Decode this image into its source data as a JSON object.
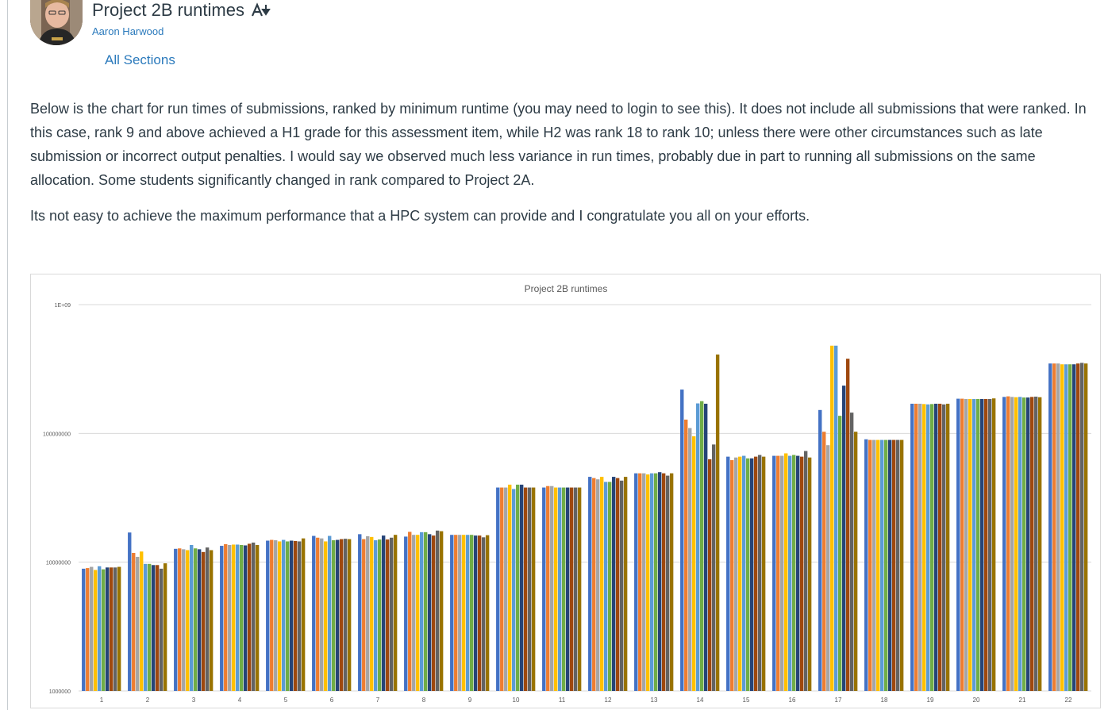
{
  "post": {
    "title": "Project 2B runtimes",
    "author": "Aaron Harwood",
    "sections_link": "All Sections",
    "paragraph1": "Below is the chart for run times of submissions, ranked by minimum runtime (you may need to login to see this). It does not include all submissions that were ranked. In this case, rank 9 and above achieved a H1 grade for this assessment item, while H2 was rank 18 to rank 10; unless there were other circumstances such as late submission or incorrect output penalties. I would say we observed much less variance in run times, probably due in part to running all submissions on the same allocation. Some students significantly changed in rank compared to Project 2A.",
    "paragraph2": "Its not easy to achieve the maximum performance that a HPC system can provide and I congratulate you all on your efforts."
  },
  "icons": {
    "avatar": "user-avatar",
    "immersive_reader": "immersive-reader-icon"
  },
  "chart_data": {
    "type": "bar",
    "title": "Project 2B runtimes",
    "yscale": "log",
    "ylim": [
      1000000,
      1000000000
    ],
    "ytick_labels": [
      "1E+09",
      "100000000",
      "10000000",
      "1000000"
    ],
    "ytick_values": [
      1000000000,
      100000000,
      10000000,
      1000000
    ],
    "grid": true,
    "categories": [
      "1",
      "2",
      "3",
      "4",
      "5",
      "6",
      "7",
      "8",
      "9",
      "10",
      "11",
      "12",
      "13",
      "14",
      "15",
      "16",
      "17",
      "18",
      "19",
      "20",
      "21",
      "22"
    ],
    "series_colors": [
      "#4472c4",
      "#ed7d31",
      "#a5a5a5",
      "#ffc000",
      "#5b9bd5",
      "#70ad47",
      "#264478",
      "#9e480e",
      "#636363",
      "#997300"
    ],
    "values": [
      [
        8900000,
        9000000,
        9200000,
        8700000,
        9300000,
        8800000,
        9100000,
        9100000,
        9100000,
        9200000
      ],
      [
        17000000,
        11800000,
        11000000,
        12100000,
        9700000,
        9700000,
        9500000,
        9500000,
        8900000,
        9800000
      ],
      [
        12700000,
        12800000,
        12600000,
        12400000,
        13600000,
        12800000,
        12600000,
        12000000,
        13000000,
        12400000
      ],
      [
        13400000,
        13800000,
        13600000,
        13700000,
        13700000,
        13600000,
        13500000,
        13900000,
        14200000,
        13600000
      ],
      [
        14700000,
        14900000,
        14800000,
        14500000,
        14900000,
        14500000,
        14700000,
        14600000,
        14500000,
        15300000
      ],
      [
        16000000,
        15500000,
        15300000,
        14500000,
        16000000,
        14800000,
        14900000,
        15100000,
        15200000,
        15100000
      ],
      [
        16500000,
        15100000,
        15900000,
        15700000,
        14800000,
        15000000,
        16100000,
        15000000,
        15500000,
        16300000
      ],
      [
        15800000,
        17200000,
        16300000,
        16300000,
        17100000,
        17100000,
        16500000,
        16100000,
        17600000,
        17400000
      ],
      [
        16300000,
        16300000,
        16300000,
        16300000,
        16300000,
        16300000,
        16100000,
        16100000,
        15600000,
        16200000
      ],
      [
        38000000,
        38000000,
        38000000,
        40000000,
        37000000,
        40000000,
        40000000,
        38000000,
        38000000,
        38000000
      ],
      [
        38000000,
        39000000,
        39000000,
        38000000,
        38000000,
        38000000,
        38000000,
        38000000,
        38000000,
        38000000
      ],
      [
        46000000,
        45000000,
        44000000,
        46000000,
        42000000,
        42000000,
        46000000,
        45000000,
        43000000,
        46000000
      ],
      [
        49000000,
        49000000,
        49000000,
        48000000,
        49000000,
        49000000,
        50000000,
        49000000,
        47000000,
        49000000
      ],
      [
        219000000,
        128000000,
        110000000,
        95000000,
        171000000,
        178000000,
        170000000,
        63000000,
        82000000,
        410000000
      ],
      [
        66000000,
        62000000,
        65000000,
        66000000,
        67000000,
        64000000,
        64000000,
        66000000,
        68000000,
        66000000
      ],
      [
        67000000,
        67000000,
        67000000,
        70000000,
        67000000,
        68000000,
        67000000,
        66000000,
        73000000,
        65000000
      ],
      [
        152000000,
        103000000,
        81000000,
        480000000,
        480000000,
        137000000,
        235000000,
        380000000,
        145000000,
        103000000
      ],
      [
        90000000,
        89000000,
        89000000,
        89000000,
        89000000,
        89000000,
        89000000,
        89000000,
        89000000,
        89000000
      ],
      [
        170000000,
        170000000,
        170000000,
        169000000,
        168000000,
        169000000,
        170000000,
        170000000,
        168000000,
        170000000
      ],
      [
        186000000,
        186000000,
        185000000,
        185000000,
        185000000,
        185000000,
        185000000,
        185000000,
        185000000,
        187000000
      ],
      [
        192000000,
        194000000,
        192000000,
        191000000,
        192000000,
        190000000,
        190000000,
        192000000,
        193000000,
        191000000
      ],
      [
        349000000,
        349000000,
        349000000,
        344000000,
        344000000,
        344000000,
        344000000,
        349000000,
        353000000,
        349000000
      ]
    ]
  }
}
